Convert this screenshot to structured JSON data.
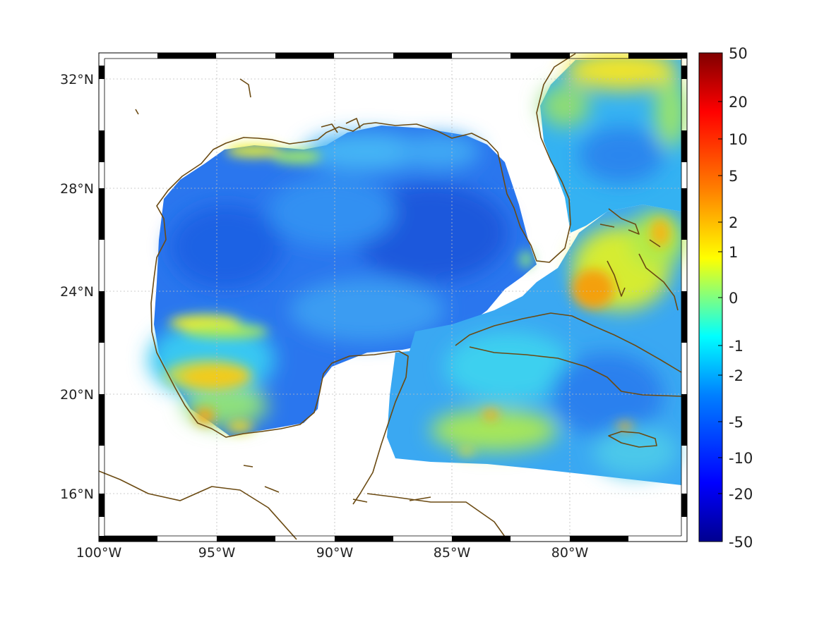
{
  "map": {
    "lon_labels": [
      "100°W",
      "95°W",
      "90°W",
      "85°W",
      "80°W"
    ],
    "lat_labels": [
      "32°N",
      "28°N",
      "24°N",
      "20°N",
      "16°N"
    ],
    "lon_values": [
      -100,
      -95,
      -90,
      -85,
      -80
    ],
    "lat_values": [
      32,
      28,
      24,
      20,
      16
    ],
    "extent": {
      "lon_min": -100,
      "lon_max": -75,
      "lat_min": 14.3,
      "lat_max": 33
    },
    "grid": true,
    "frame_style": "alternating black/white bands",
    "coastline_color": "#6b4a12"
  },
  "colorbar": {
    "tick_labels": [
      "50",
      "20",
      "10",
      "5",
      "2",
      "1",
      "0",
      "-1",
      "-2",
      "-5",
      "-10",
      "-20",
      "-50"
    ],
    "colormap": "jet",
    "colors": [
      "#00008f",
      "#0000ff",
      "#0080ff",
      "#00ffff",
      "#80ff80",
      "#ffff00",
      "#ff8000",
      "#ff0000",
      "#800000"
    ]
  },
  "ocean_colors": {
    "deep_blue": "#1e5fe0",
    "blue": "#2b7cf0",
    "light_blue": "#3aa6f5",
    "cyan": "#2fd8f0",
    "green_yellow": "#b8ee3a",
    "yellow": "#f4f000",
    "orange": "#f7a810",
    "land": "#ffffff"
  }
}
